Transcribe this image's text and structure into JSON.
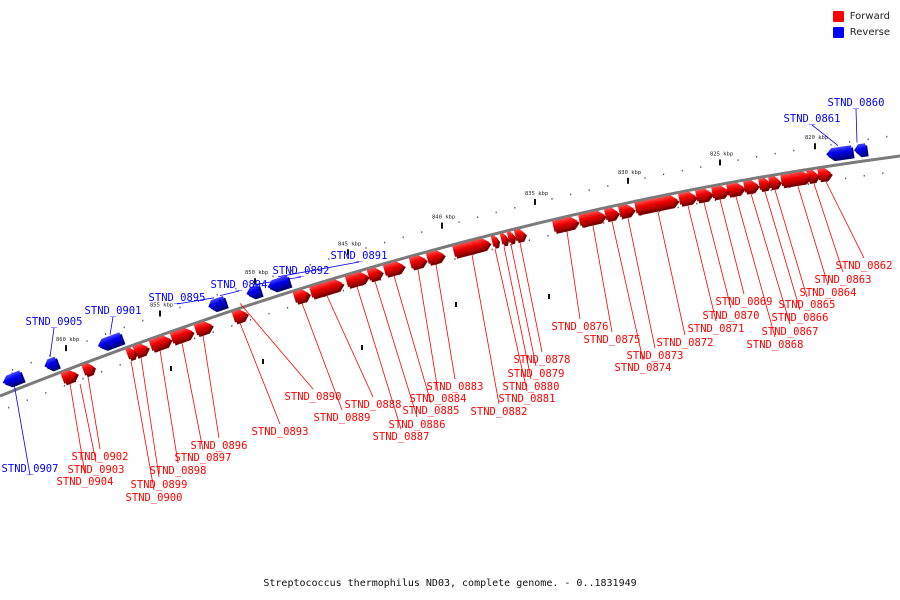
{
  "legend": {
    "forward_label": "Forward",
    "reverse_label": "Reverse",
    "forward_color": "#ff0000",
    "reverse_color": "#0000ff"
  },
  "caption": "Streptococcus thermophilus ND03, complete genome. - 0..1831949",
  "ticks": [
    "820 kbp",
    "825 kbp",
    "830 kbp",
    "835 kbp",
    "840 kbp",
    "845 kbp",
    "850 kbp",
    "855 kbp",
    "860 kbp"
  ],
  "genes": [
    {
      "name": "STND_0860",
      "strand": "reverse"
    },
    {
      "name": "STND_0861",
      "strand": "reverse"
    },
    {
      "name": "STND_0862",
      "strand": "forward"
    },
    {
      "name": "STND_0863",
      "strand": "forward"
    },
    {
      "name": "STND_0864",
      "strand": "forward"
    },
    {
      "name": "STND_0865",
      "strand": "forward"
    },
    {
      "name": "STND_0866",
      "strand": "forward"
    },
    {
      "name": "STND_0867",
      "strand": "forward"
    },
    {
      "name": "STND_0868",
      "strand": "forward"
    },
    {
      "name": "STND_0869",
      "strand": "forward"
    },
    {
      "name": "STND_0870",
      "strand": "forward"
    },
    {
      "name": "STND_0871",
      "strand": "forward"
    },
    {
      "name": "STND_0872",
      "strand": "forward"
    },
    {
      "name": "STND_0873",
      "strand": "forward"
    },
    {
      "name": "STND_0874",
      "strand": "forward"
    },
    {
      "name": "STND_0875",
      "strand": "forward"
    },
    {
      "name": "STND_0876",
      "strand": "forward"
    },
    {
      "name": "STND_0878",
      "strand": "forward"
    },
    {
      "name": "STND_0879",
      "strand": "forward"
    },
    {
      "name": "STND_0880",
      "strand": "forward"
    },
    {
      "name": "STND_0881",
      "strand": "forward"
    },
    {
      "name": "STND_0882",
      "strand": "forward"
    },
    {
      "name": "STND_0883",
      "strand": "forward"
    },
    {
      "name": "STND_0884",
      "strand": "forward"
    },
    {
      "name": "STND_0885",
      "strand": "forward"
    },
    {
      "name": "STND_0886",
      "strand": "forward"
    },
    {
      "name": "STND_0887",
      "strand": "forward"
    },
    {
      "name": "STND_0888",
      "strand": "forward"
    },
    {
      "name": "STND_0889",
      "strand": "forward"
    },
    {
      "name": "STND_0890",
      "strand": "forward"
    },
    {
      "name": "STND_0891",
      "strand": "reverse"
    },
    {
      "name": "STND_0892",
      "strand": "reverse"
    },
    {
      "name": "STND_0893",
      "strand": "forward"
    },
    {
      "name": "STND_0894",
      "strand": "reverse"
    },
    {
      "name": "STND_0895",
      "strand": "reverse"
    },
    {
      "name": "STND_0896",
      "strand": "forward"
    },
    {
      "name": "STND_0897",
      "strand": "forward"
    },
    {
      "name": "STND_0898",
      "strand": "forward"
    },
    {
      "name": "STND_0899",
      "strand": "forward"
    },
    {
      "name": "STND_0900",
      "strand": "forward"
    },
    {
      "name": "STND_0901",
      "strand": "reverse"
    },
    {
      "name": "STND_0902",
      "strand": "forward"
    },
    {
      "name": "STND_0903",
      "strand": "forward"
    },
    {
      "name": "STND_0904",
      "strand": "forward"
    },
    {
      "name": "STND_0905",
      "strand": "reverse"
    },
    {
      "name": "STND_0907",
      "strand": "reverse"
    }
  ]
}
